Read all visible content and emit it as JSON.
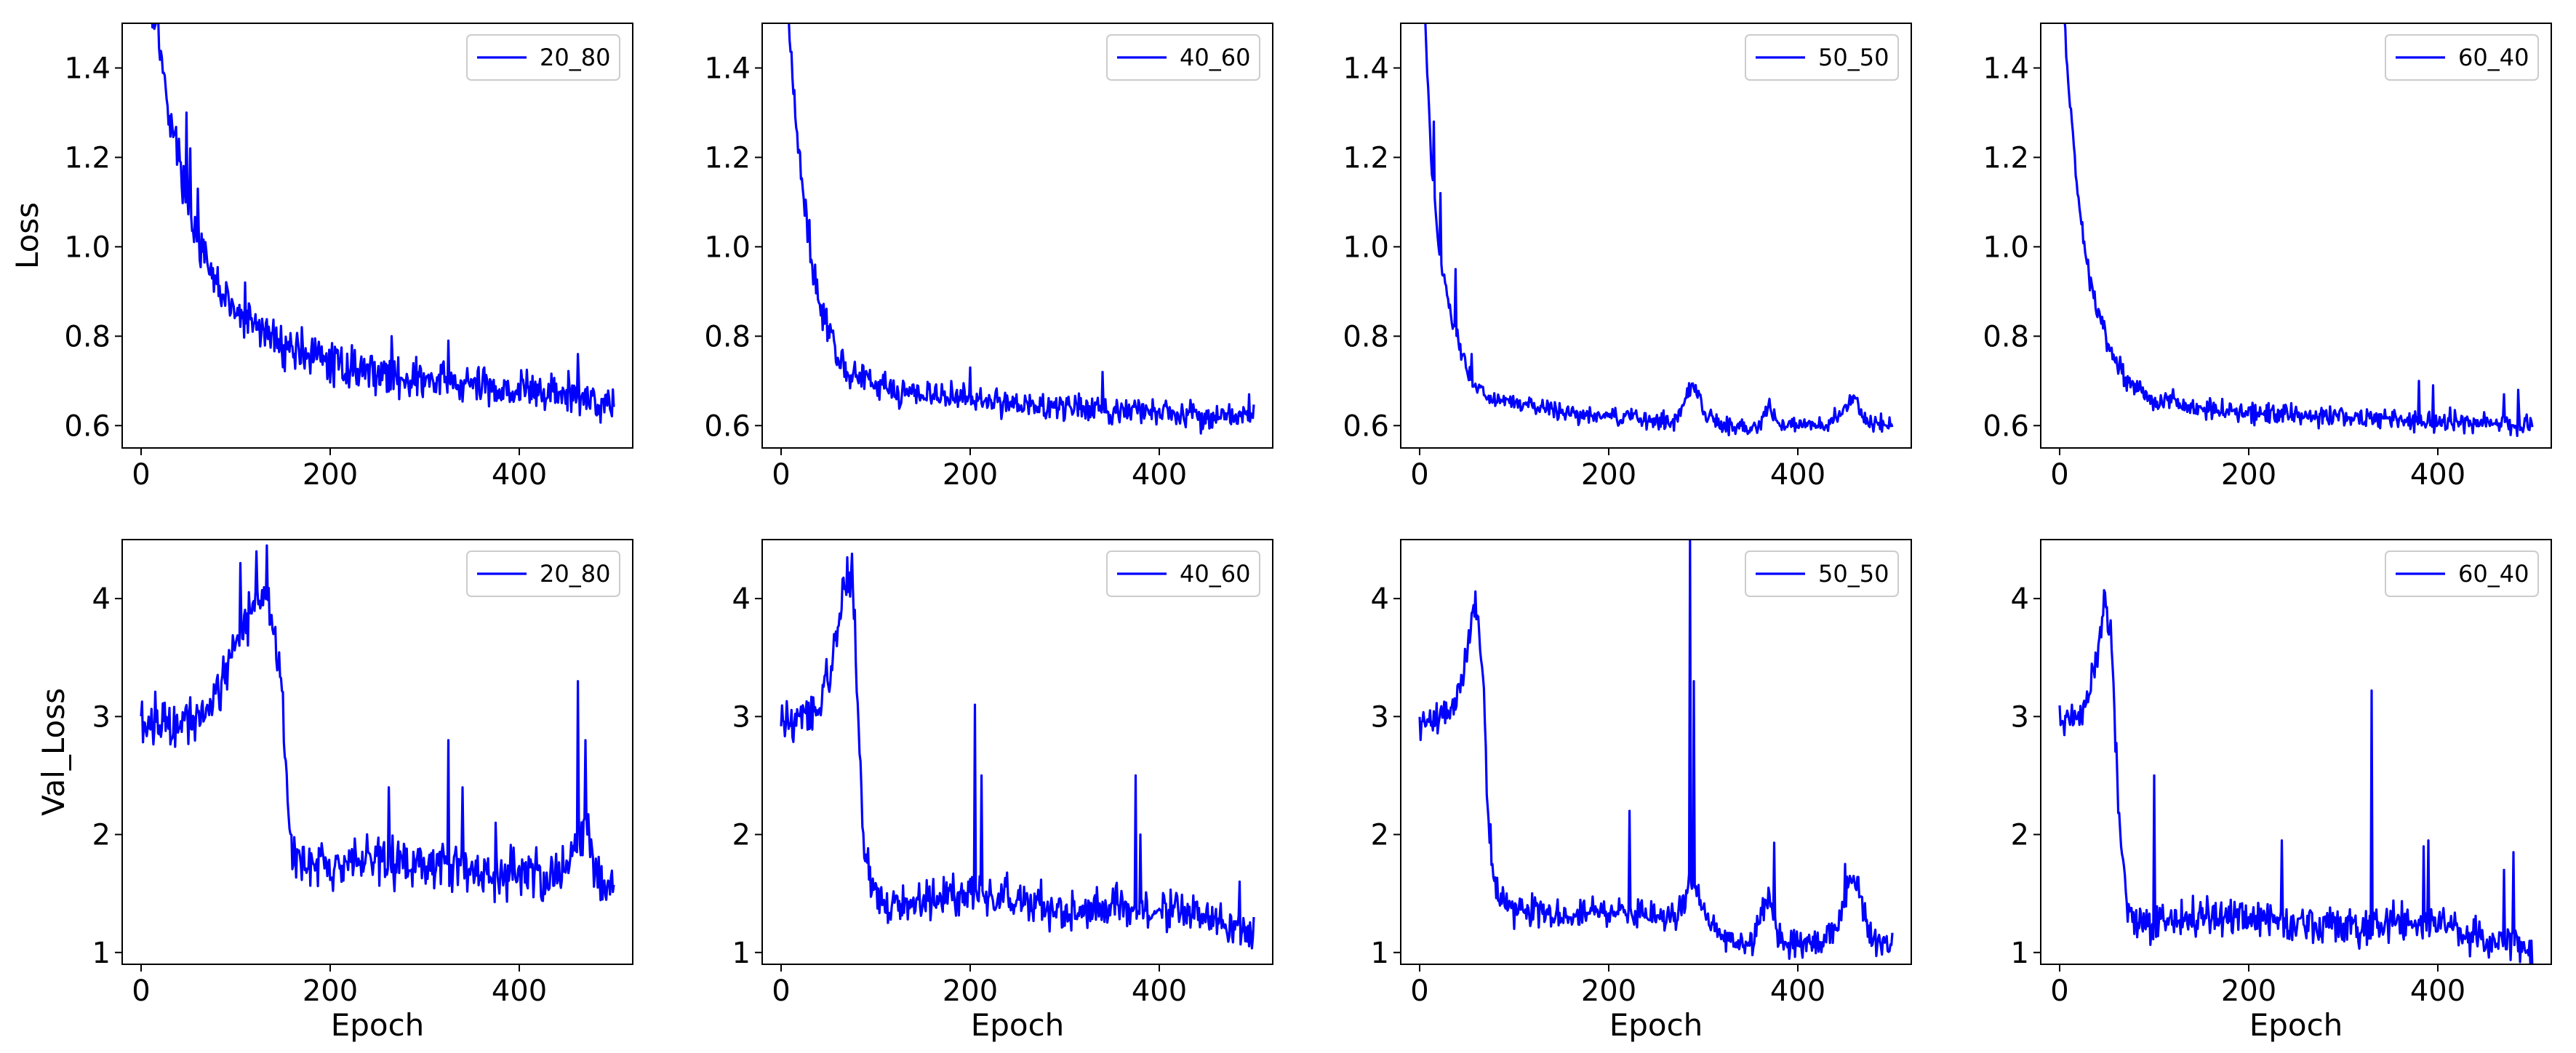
{
  "figure": {
    "line_color": "#0000ff",
    "x_ticks": [
      0,
      200,
      400
    ],
    "x_label": "Epoch",
    "loss_label": "Loss",
    "val_loss_label": "Val_Loss"
  },
  "chart_data": [
    {
      "type": "line",
      "row": "loss",
      "title": "",
      "series": [
        {
          "name": "20_80",
          "keypoints": [
            [
              0,
              1.6
            ],
            [
              18,
              1.5
            ],
            [
              25,
              1.35
            ],
            [
              35,
              1.25
            ],
            [
              45,
              1.15
            ],
            [
              55,
              1.05
            ],
            [
              70,
              0.95
            ],
            [
              85,
              0.9
            ],
            [
              100,
              0.85
            ],
            [
              125,
              0.82
            ],
            [
              150,
              0.78
            ],
            [
              175,
              0.76
            ],
            [
              200,
              0.74
            ],
            [
              250,
              0.72
            ],
            [
              300,
              0.7
            ],
            [
              350,
              0.69
            ],
            [
              400,
              0.68
            ],
            [
              450,
              0.67
            ],
            [
              500,
              0.65
            ]
          ],
          "noise": 0.035,
          "spikes": [
            [
              48,
              1.3
            ],
            [
              52,
              1.22
            ],
            [
              60,
              1.13
            ],
            [
              110,
              0.92
            ],
            [
              170,
              0.82
            ],
            [
              265,
              0.8
            ],
            [
              325,
              0.79
            ],
            [
              462,
              0.76
            ]
          ]
        }
      ],
      "xlabel": "",
      "ylabel": "Loss",
      "xlim": [
        -20,
        520
      ],
      "ylim": [
        0.55,
        1.5
      ],
      "yticks": [
        0.6,
        0.8,
        1.0,
        1.2,
        1.4
      ],
      "xticks": [
        0,
        200,
        400
      ],
      "legend": "top-right"
    },
    {
      "type": "line",
      "row": "loss",
      "title": "",
      "series": [
        {
          "name": "40_60",
          "keypoints": [
            [
              0,
              1.8
            ],
            [
              8,
              1.52
            ],
            [
              15,
              1.3
            ],
            [
              22,
              1.15
            ],
            [
              30,
              1.0
            ],
            [
              40,
              0.88
            ],
            [
              55,
              0.78
            ],
            [
              70,
              0.72
            ],
            [
              100,
              0.69
            ],
            [
              150,
              0.67
            ],
            [
              200,
              0.66
            ],
            [
              250,
              0.65
            ],
            [
              300,
              0.64
            ],
            [
              400,
              0.63
            ],
            [
              500,
              0.62
            ]
          ],
          "noise": 0.025,
          "spikes": [
            [
              30,
              1.06
            ],
            [
              36,
              0.96
            ],
            [
              200,
              0.73
            ],
            [
              340,
              0.72
            ],
            [
              495,
              0.67
            ]
          ]
        }
      ],
      "xlabel": "",
      "ylabel": "",
      "xlim": [
        -20,
        520
      ],
      "ylim": [
        0.55,
        1.5
      ],
      "yticks": [
        0.6,
        0.8,
        1.0,
        1.2,
        1.4
      ],
      "xticks": [
        0,
        200,
        400
      ],
      "legend": "top-right"
    },
    {
      "type": "line",
      "row": "loss",
      "title": "",
      "series": [
        {
          "name": "50_50",
          "keypoints": [
            [
              0,
              1.8
            ],
            [
              5,
              1.55
            ],
            [
              12,
              1.2
            ],
            [
              20,
              1.0
            ],
            [
              30,
              0.88
            ],
            [
              40,
              0.8
            ],
            [
              50,
              0.72
            ],
            [
              60,
              0.68
            ],
            [
              80,
              0.66
            ],
            [
              100,
              0.65
            ],
            [
              150,
              0.63
            ],
            [
              200,
              0.62
            ],
            [
              270,
              0.61
            ],
            [
              280,
              0.66
            ],
            [
              290,
              0.7
            ],
            [
              300,
              0.63
            ],
            [
              320,
              0.6
            ],
            [
              360,
              0.6
            ],
            [
              370,
              0.65
            ],
            [
              380,
              0.6
            ],
            [
              430,
              0.6
            ],
            [
              450,
              0.64
            ],
            [
              460,
              0.66
            ],
            [
              470,
              0.61
            ],
            [
              500,
              0.6
            ]
          ],
          "noise": 0.015,
          "spikes": [
            [
              15,
              1.28
            ],
            [
              22,
              1.12
            ],
            [
              38,
              0.95
            ],
            [
              42,
              0.77
            ],
            [
              55,
              0.76
            ]
          ]
        }
      ],
      "xlabel": "",
      "ylabel": "",
      "xlim": [
        -20,
        520
      ],
      "ylim": [
        0.55,
        1.5
      ],
      "yticks": [
        0.6,
        0.8,
        1.0,
        1.2,
        1.4
      ],
      "xticks": [
        0,
        200,
        400
      ],
      "legend": "top-right"
    },
    {
      "type": "line",
      "row": "loss",
      "title": "",
      "series": [
        {
          "name": "60_40",
          "keypoints": [
            [
              0,
              1.7
            ],
            [
              5,
              1.5
            ],
            [
              10,
              1.35
            ],
            [
              20,
              1.1
            ],
            [
              30,
              0.95
            ],
            [
              40,
              0.85
            ],
            [
              55,
              0.76
            ],
            [
              70,
              0.7
            ],
            [
              100,
              0.66
            ],
            [
              150,
              0.64
            ],
            [
              200,
              0.63
            ],
            [
              300,
              0.62
            ],
            [
              400,
              0.61
            ],
            [
              500,
              0.6
            ]
          ],
          "noise": 0.018,
          "spikes": [
            [
              22,
              1.07
            ],
            [
              37,
              0.9
            ],
            [
              380,
              0.7
            ],
            [
              395,
              0.69
            ],
            [
              470,
              0.67
            ],
            [
              485,
              0.68
            ]
          ]
        }
      ],
      "xlabel": "",
      "ylabel": "",
      "xlim": [
        -20,
        520
      ],
      "ylim": [
        0.55,
        1.5
      ],
      "yticks": [
        0.6,
        0.8,
        1.0,
        1.2,
        1.4
      ],
      "xticks": [
        0,
        200,
        400
      ],
      "legend": "top-right"
    },
    {
      "type": "line",
      "row": "val_loss",
      "title": "",
      "series": [
        {
          "name": "20_80",
          "keypoints": [
            [
              0,
              2.95
            ],
            [
              30,
              2.95
            ],
            [
              50,
              3.0
            ],
            [
              70,
              3.1
            ],
            [
              85,
              3.3
            ],
            [
              100,
              3.6
            ],
            [
              115,
              3.9
            ],
            [
              130,
              4.1
            ],
            [
              140,
              3.8
            ],
            [
              148,
              3.3
            ],
            [
              155,
              2.3
            ],
            [
              160,
              1.85
            ],
            [
              180,
              1.75
            ],
            [
              200,
              1.7
            ],
            [
              250,
              1.8
            ],
            [
              300,
              1.75
            ],
            [
              350,
              1.7
            ],
            [
              400,
              1.65
            ],
            [
              450,
              1.7
            ],
            [
              470,
              2.1
            ],
            [
              480,
              1.7
            ],
            [
              490,
              1.55
            ],
            [
              500,
              1.6
            ]
          ],
          "noise": 0.16,
          "spikes": [
            [
              105,
              4.3
            ],
            [
              122,
              4.4
            ],
            [
              133,
              4.45
            ],
            [
              262,
              2.4
            ],
            [
              325,
              2.8
            ],
            [
              340,
              2.4
            ],
            [
              375,
              2.1
            ],
            [
              462,
              3.3
            ],
            [
              470,
              2.8
            ]
          ]
        }
      ],
      "xlabel": "Epoch",
      "ylabel": "Val_Loss",
      "xlim": [
        -20,
        520
      ],
      "ylim": [
        0.9,
        4.5
      ],
      "yticks": [
        1,
        2,
        3,
        4
      ],
      "xticks": [
        0,
        200,
        400
      ],
      "legend": "top-right"
    },
    {
      "type": "line",
      "row": "val_loss",
      "title": "",
      "series": [
        {
          "name": "40_60",
          "keypoints": [
            [
              0,
              2.95
            ],
            [
              20,
              2.95
            ],
            [
              35,
              3.05
            ],
            [
              50,
              3.3
            ],
            [
              60,
              3.7
            ],
            [
              67,
              4.1
            ],
            [
              75,
              4.2
            ],
            [
              78,
              3.8
            ],
            [
              82,
              2.8
            ],
            [
              88,
              1.9
            ],
            [
              95,
              1.6
            ],
            [
              110,
              1.4
            ],
            [
              150,
              1.45
            ],
            [
              200,
              1.5
            ],
            [
              250,
              1.45
            ],
            [
              300,
              1.35
            ],
            [
              350,
              1.4
            ],
            [
              400,
              1.35
            ],
            [
              450,
              1.3
            ],
            [
              500,
              1.15
            ]
          ],
          "noise": 0.13,
          "spikes": [
            [
              70,
              4.35
            ],
            [
              75,
              4.38
            ],
            [
              205,
              3.1
            ],
            [
              212,
              2.5
            ],
            [
              375,
              2.5
            ],
            [
              380,
              2.0
            ],
            [
              485,
              1.6
            ]
          ]
        }
      ],
      "xlabel": "Epoch",
      "ylabel": "",
      "xlim": [
        -20,
        520
      ],
      "ylim": [
        0.9,
        4.5
      ],
      "yticks": [
        1,
        2,
        3,
        4
      ],
      "xticks": [
        0,
        200,
        400
      ],
      "legend": "top-right"
    },
    {
      "type": "line",
      "row": "val_loss",
      "title": "",
      "series": [
        {
          "name": "50_50",
          "keypoints": [
            [
              0,
              2.95
            ],
            [
              20,
              2.97
            ],
            [
              35,
              3.1
            ],
            [
              45,
              3.3
            ],
            [
              52,
              3.6
            ],
            [
              57,
              3.95
            ],
            [
              62,
              3.8
            ],
            [
              68,
              3.2
            ],
            [
              72,
              2.2
            ],
            [
              78,
              1.6
            ],
            [
              90,
              1.4
            ],
            [
              120,
              1.35
            ],
            [
              150,
              1.3
            ],
            [
              200,
              1.35
            ],
            [
              250,
              1.3
            ],
            [
              275,
              1.3
            ],
            [
              285,
              1.6
            ],
            [
              295,
              1.5
            ],
            [
              305,
              1.3
            ],
            [
              330,
              1.1
            ],
            [
              350,
              1.05
            ],
            [
              360,
              1.3
            ],
            [
              370,
              1.5
            ],
            [
              380,
              1.1
            ],
            [
              420,
              1.05
            ],
            [
              440,
              1.2
            ],
            [
              455,
              1.6
            ],
            [
              465,
              1.5
            ],
            [
              475,
              1.15
            ],
            [
              500,
              1.05
            ]
          ],
          "noise": 0.1,
          "spikes": [
            [
              59,
              4.06
            ],
            [
              222,
              2.2
            ],
            [
              286,
              4.5
            ],
            [
              290,
              3.3
            ],
            [
              375,
              1.93
            ],
            [
              450,
              1.75
            ]
          ]
        }
      ],
      "xlabel": "Epoch",
      "ylabel": "",
      "xlim": [
        -20,
        520
      ],
      "ylim": [
        0.9,
        4.5
      ],
      "yticks": [
        1,
        2,
        3,
        4
      ],
      "xticks": [
        0,
        200,
        400
      ],
      "legend": "top-right"
    },
    {
      "type": "line",
      "row": "val_loss",
      "title": "",
      "series": [
        {
          "name": "60_40",
          "keypoints": [
            [
              0,
              2.95
            ],
            [
              15,
              2.97
            ],
            [
              25,
              3.05
            ],
            [
              35,
              3.3
            ],
            [
              42,
              3.6
            ],
            [
              48,
              3.95
            ],
            [
              55,
              3.6
            ],
            [
              60,
              2.6
            ],
            [
              65,
              1.8
            ],
            [
              72,
              1.4
            ],
            [
              90,
              1.25
            ],
            [
              130,
              1.3
            ],
            [
              200,
              1.3
            ],
            [
              250,
              1.25
            ],
            [
              300,
              1.2
            ],
            [
              350,
              1.25
            ],
            [
              400,
              1.25
            ],
            [
              450,
              1.1
            ],
            [
              500,
              1.05
            ]
          ],
          "noise": 0.12,
          "spikes": [
            [
              48,
              4.05
            ],
            [
              100,
              2.5
            ],
            [
              235,
              1.95
            ],
            [
              330,
              3.22
            ],
            [
              385,
              1.9
            ],
            [
              390,
              1.95
            ],
            [
              470,
              1.7
            ],
            [
              480,
              1.85
            ]
          ]
        }
      ],
      "xlabel": "Epoch",
      "ylabel": "",
      "xlim": [
        -20,
        520
      ],
      "ylim": [
        0.9,
        4.5
      ],
      "yticks": [
        1,
        2,
        3,
        4
      ],
      "xticks": [
        0,
        200,
        400
      ],
      "legend": "top-right"
    }
  ]
}
